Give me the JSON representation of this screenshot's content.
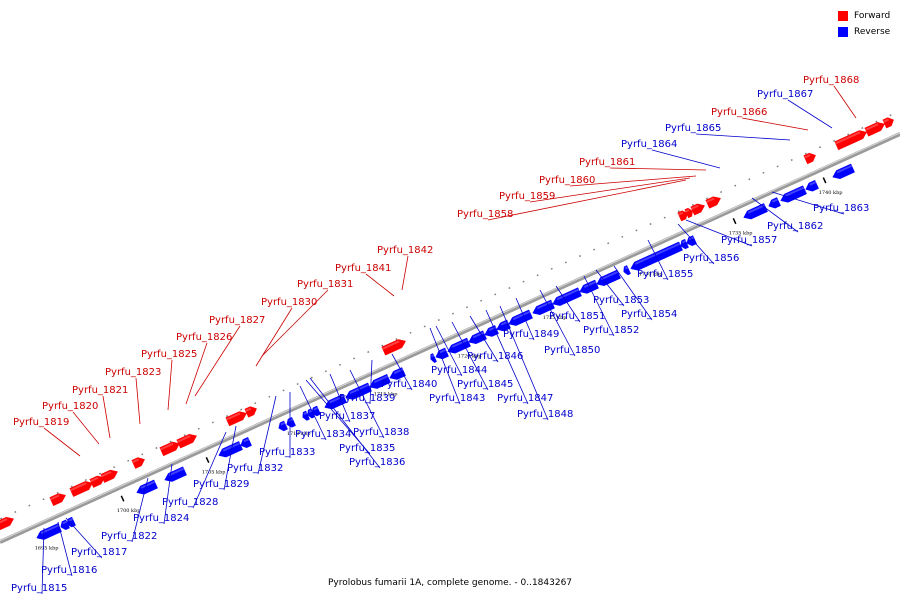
{
  "title": "Pyrolobus fumarii 1A, complete genome. - 0..1843267",
  "legend": [
    {
      "label": "Forward",
      "color": "#ff0000"
    },
    {
      "label": "Reverse",
      "color": "#0000ff"
    }
  ],
  "colors": {
    "forward": "#ff0000",
    "reverse": "#0000ff",
    "backbone": "#888888",
    "label_forward": "#cc0000",
    "label_reverse": "#0000cc"
  },
  "ticks": [
    "1695 kbp",
    "1700 kbp",
    "1705 kbp",
    "1710 kbp",
    "1715 kbp",
    "1720 kbp",
    "1725 kbp",
    "1730 kbp",
    "1735 kbp",
    "1740 kbp"
  ],
  "forward_genes": [
    "Pyrfu_1819",
    "Pyrfu_1820",
    "Pyrfu_1821",
    "Pyrfu_1823",
    "Pyrfu_1825",
    "Pyrfu_1826",
    "Pyrfu_1827",
    "Pyrfu_1830",
    "Pyrfu_1831",
    "Pyrfu_1841",
    "Pyrfu_1842",
    "Pyrfu_1858",
    "Pyrfu_1859",
    "Pyrfu_1860",
    "Pyrfu_1861",
    "Pyrfu_1866",
    "Pyrfu_1868"
  ],
  "reverse_genes": [
    "Pyrfu_1815",
    "Pyrfu_1816",
    "Pyrfu_1817",
    "Pyrfu_1822",
    "Pyrfu_1824",
    "Pyrfu_1828",
    "Pyrfu_1829",
    "Pyrfu_1832",
    "Pyrfu_1833",
    "Pyrfu_1834",
    "Pyrfu_1835",
    "Pyrfu_1836",
    "Pyrfu_1837",
    "Pyrfu_1838",
    "Pyrfu_1839",
    "Pyrfu_1840",
    "Pyrfu_1843",
    "Pyrfu_1844",
    "Pyrfu_1845",
    "Pyrfu_1846",
    "Pyrfu_1847",
    "Pyrfu_1848",
    "Pyrfu_1849",
    "Pyrfu_1850",
    "Pyrfu_1851",
    "Pyrfu_1852",
    "Pyrfu_1853",
    "Pyrfu_1854",
    "Pyrfu_1855",
    "Pyrfu_1856",
    "Pyrfu_1857",
    "Pyrfu_1862",
    "Pyrfu_1863",
    "Pyrfu_1864",
    "Pyrfu_1865",
    "Pyrfu_1867"
  ]
}
